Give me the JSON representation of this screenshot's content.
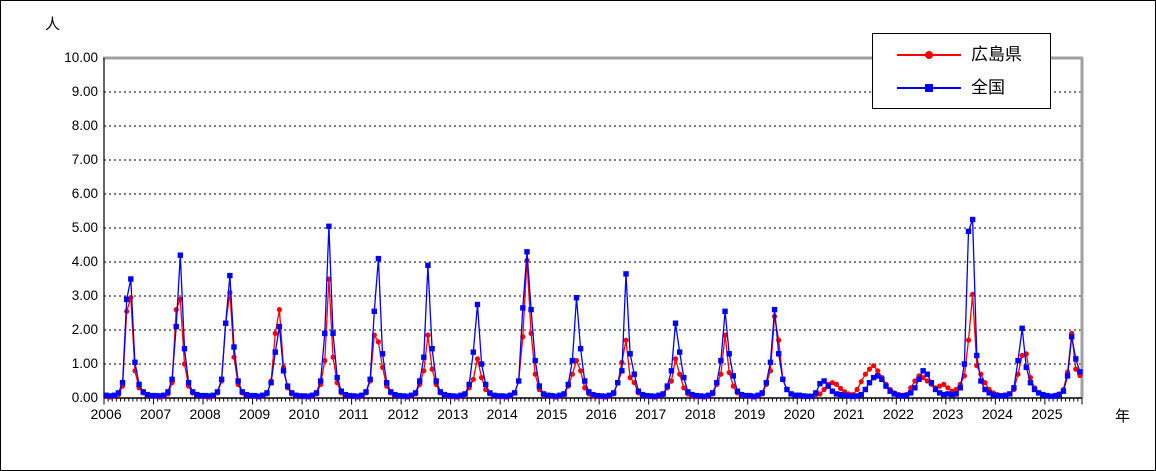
{
  "window": {
    "background": "#ffffff",
    "border_color": "#000000"
  },
  "chart_data": {
    "type": "line",
    "title": "",
    "y_axis": {
      "label": "人",
      "min": 0,
      "max": 10,
      "tick_step": 1,
      "tick_labels": [
        "0.00",
        "1.00",
        "2.00",
        "3.00",
        "4.00",
        "5.00",
        "6.00",
        "7.00",
        "8.00",
        "9.00",
        "10.00"
      ],
      "gridlines": "dashed horizontal at each 1.00"
    },
    "x_axis": {
      "label": "年",
      "years": [
        2006,
        2007,
        2008,
        2009,
        2010,
        2011,
        2012,
        2013,
        2014,
        2015,
        2016,
        2017,
        2018,
        2019,
        2020,
        2021,
        2022,
        2023,
        2024,
        2025
      ],
      "resolution": "monthly",
      "months_in_last_year": 9
    },
    "legend": {
      "position": "top-right",
      "border": "#000000",
      "background": "#ffffff"
    },
    "plot_border": {
      "top_right_color": "#a0a0a0",
      "left_bottom_color": "#000000"
    },
    "series": [
      {
        "name": "広島県",
        "color": "#FF0000",
        "marker": "circle",
        "values_by_year": [
          [
            0.05,
            0.03,
            0.05,
            0.1,
            0.35,
            2.55,
            2.95,
            0.8,
            0.3,
            0.15,
            0.08,
            0.05
          ],
          [
            0.05,
            0.03,
            0.05,
            0.12,
            0.45,
            2.6,
            2.9,
            1.0,
            0.35,
            0.15,
            0.08,
            0.05
          ],
          [
            0.05,
            0.03,
            0.05,
            0.15,
            0.5,
            2.2,
            3.1,
            1.2,
            0.4,
            0.15,
            0.08,
            0.05
          ],
          [
            0.05,
            0.03,
            0.05,
            0.12,
            0.5,
            1.9,
            2.6,
            0.9,
            0.3,
            0.12,
            0.06,
            0.04
          ],
          [
            0.04,
            0.03,
            0.05,
            0.12,
            0.4,
            1.1,
            3.5,
            1.2,
            0.45,
            0.15,
            0.08,
            0.05
          ],
          [
            0.04,
            0.03,
            0.05,
            0.15,
            0.5,
            1.85,
            1.65,
            0.9,
            0.35,
            0.15,
            0.08,
            0.05
          ],
          [
            0.04,
            0.03,
            0.05,
            0.12,
            0.4,
            0.8,
            1.85,
            0.85,
            0.4,
            0.15,
            0.08,
            0.05
          ],
          [
            0.04,
            0.03,
            0.05,
            0.1,
            0.3,
            0.55,
            1.15,
            0.6,
            0.25,
            0.12,
            0.06,
            0.04
          ],
          [
            0.04,
            0.03,
            0.05,
            0.15,
            0.5,
            1.8,
            4.05,
            1.9,
            0.7,
            0.25,
            0.1,
            0.06
          ],
          [
            0.05,
            0.03,
            0.05,
            0.1,
            0.35,
            0.7,
            1.1,
            0.8,
            0.3,
            0.12,
            0.06,
            0.04
          ],
          [
            0.04,
            0.03,
            0.05,
            0.12,
            0.45,
            1.05,
            1.7,
            0.6,
            0.45,
            0.15,
            0.08,
            0.05
          ],
          [
            0.04,
            0.03,
            0.05,
            0.1,
            0.3,
            0.5,
            1.15,
            0.7,
            0.3,
            0.12,
            0.06,
            0.04
          ],
          [
            0.04,
            0.03,
            0.05,
            0.12,
            0.4,
            0.7,
            1.85,
            0.75,
            0.35,
            0.15,
            0.08,
            0.05
          ],
          [
            0.05,
            0.03,
            0.05,
            0.12,
            0.4,
            0.8,
            2.4,
            1.7,
            0.55,
            0.25,
            0.12,
            0.08
          ],
          [
            0.06,
            0.04,
            0.04,
            0.04,
            0.1,
            0.12,
            0.25,
            0.4,
            0.45,
            0.4,
            0.28,
            0.18
          ],
          [
            0.12,
            0.1,
            0.25,
            0.48,
            0.7,
            0.85,
            0.95,
            0.8,
            0.6,
            0.4,
            0.25,
            0.15
          ],
          [
            0.1,
            0.08,
            0.1,
            0.3,
            0.5,
            0.65,
            0.6,
            0.5,
            0.4,
            0.3,
            0.35,
            0.4
          ],
          [
            0.3,
            0.2,
            0.25,
            0.4,
            0.65,
            1.7,
            3.05,
            0.95,
            0.7,
            0.45,
            0.25,
            0.15
          ],
          [
            0.1,
            0.07,
            0.08,
            0.12,
            0.25,
            0.7,
            1.25,
            1.3,
            0.6,
            0.3,
            0.15,
            0.1
          ],
          [
            0.07,
            0.05,
            0.08,
            0.12,
            0.25,
            0.76,
            1.9,
            0.85,
            0.66
          ]
        ]
      },
      {
        "name": "全国",
        "color": "#0000FF",
        "marker": "square",
        "values_by_year": [
          [
            0.08,
            0.06,
            0.08,
            0.15,
            0.45,
            2.9,
            3.5,
            1.05,
            0.4,
            0.18,
            0.1,
            0.07
          ],
          [
            0.07,
            0.06,
            0.08,
            0.18,
            0.55,
            2.1,
            4.2,
            1.45,
            0.45,
            0.18,
            0.1,
            0.07
          ],
          [
            0.07,
            0.06,
            0.08,
            0.18,
            0.55,
            2.2,
            3.6,
            1.5,
            0.5,
            0.18,
            0.1,
            0.07
          ],
          [
            0.07,
            0.05,
            0.08,
            0.15,
            0.45,
            1.35,
            2.1,
            0.8,
            0.35,
            0.15,
            0.08,
            0.06
          ],
          [
            0.06,
            0.05,
            0.08,
            0.15,
            0.5,
            1.9,
            5.05,
            1.9,
            0.6,
            0.2,
            0.1,
            0.07
          ],
          [
            0.06,
            0.05,
            0.08,
            0.18,
            0.55,
            2.55,
            4.1,
            1.3,
            0.45,
            0.18,
            0.1,
            0.07
          ],
          [
            0.06,
            0.05,
            0.08,
            0.15,
            0.5,
            1.2,
            3.9,
            1.45,
            0.5,
            0.18,
            0.1,
            0.07
          ],
          [
            0.06,
            0.05,
            0.08,
            0.12,
            0.4,
            1.35,
            2.75,
            1.0,
            0.4,
            0.15,
            0.08,
            0.06
          ],
          [
            0.06,
            0.05,
            0.08,
            0.15,
            0.5,
            2.65,
            4.3,
            2.6,
            1.1,
            0.35,
            0.12,
            0.08
          ],
          [
            0.07,
            0.05,
            0.08,
            0.12,
            0.4,
            1.1,
            2.95,
            1.45,
            0.5,
            0.18,
            0.1,
            0.07
          ],
          [
            0.06,
            0.05,
            0.08,
            0.15,
            0.45,
            0.8,
            3.65,
            1.3,
            0.7,
            0.2,
            0.1,
            0.07
          ],
          [
            0.06,
            0.05,
            0.08,
            0.12,
            0.35,
            0.8,
            2.2,
            1.35,
            0.6,
            0.18,
            0.1,
            0.07
          ],
          [
            0.06,
            0.05,
            0.08,
            0.15,
            0.45,
            1.1,
            2.55,
            1.3,
            0.65,
            0.2,
            0.1,
            0.07
          ],
          [
            0.07,
            0.05,
            0.08,
            0.15,
            0.45,
            1.05,
            2.6,
            1.3,
            0.55,
            0.25,
            0.12,
            0.08
          ],
          [
            0.08,
            0.06,
            0.05,
            0.05,
            0.15,
            0.42,
            0.5,
            0.35,
            0.2,
            0.12,
            0.1,
            0.08
          ],
          [
            0.06,
            0.05,
            0.06,
            0.1,
            0.25,
            0.45,
            0.6,
            0.65,
            0.55,
            0.35,
            0.2,
            0.12
          ],
          [
            0.08,
            0.06,
            0.08,
            0.15,
            0.3,
            0.55,
            0.8,
            0.7,
            0.45,
            0.25,
            0.15,
            0.1
          ],
          [
            0.12,
            0.1,
            0.12,
            0.3,
            1.0,
            4.9,
            5.25,
            1.25,
            0.5,
            0.25,
            0.15,
            0.1
          ],
          [
            0.07,
            0.06,
            0.08,
            0.12,
            0.3,
            1.1,
            2.05,
            0.9,
            0.45,
            0.25,
            0.15,
            0.1
          ],
          [
            0.07,
            0.05,
            0.06,
            0.1,
            0.2,
            0.65,
            1.8,
            1.15,
            0.77
          ]
        ]
      }
    ]
  }
}
